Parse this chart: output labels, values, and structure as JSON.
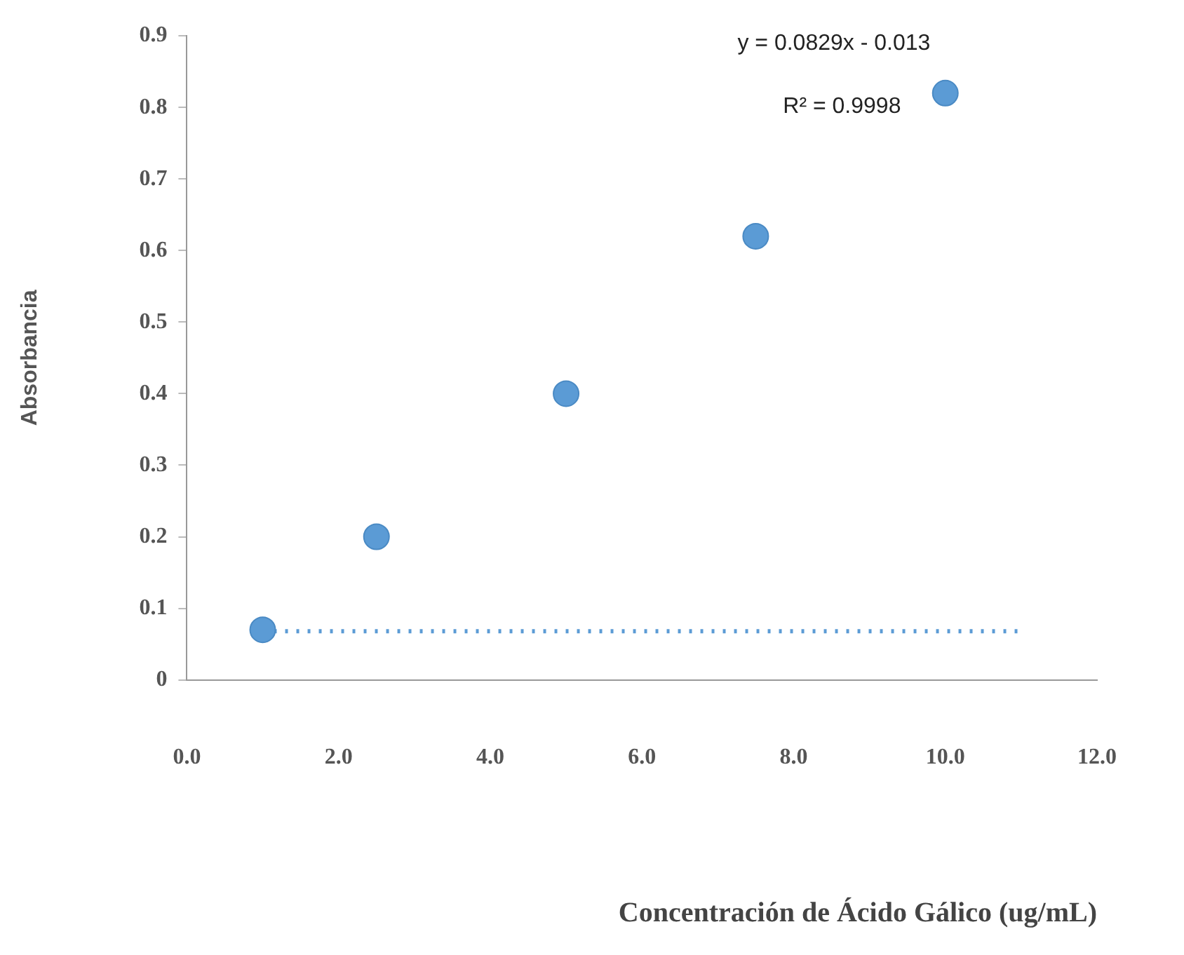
{
  "chart_data": {
    "type": "scatter",
    "xlabel": "Concentración de Ácido Gálico (ug/mL)",
    "ylabel": "Absorbancia",
    "x": [
      1,
      2.5,
      5,
      7.5,
      10
    ],
    "series": [
      {
        "type": "scatter",
        "color": "#5b9bd5",
        "values": [
          0.07,
          0.2,
          0.4,
          0.62,
          0.82
        ],
        "marker": "circle"
      },
      {
        "type": "line",
        "color": "#5b9bd5",
        "x": [
          1,
          11
        ],
        "values": [
          0.068,
          0.068
        ],
        "line_style": "dotted",
        "marker": "none"
      }
    ],
    "xlim": [
      0,
      12
    ],
    "xticks": [
      {
        "value": 0,
        "label": "0.0"
      },
      {
        "value": 2,
        "label": "2.0"
      },
      {
        "value": 4,
        "label": "4.0"
      },
      {
        "value": 6,
        "label": "6.0"
      },
      {
        "value": 8,
        "label": "8.0"
      },
      {
        "value": 10,
        "label": "10.0"
      },
      {
        "value": 12,
        "label": "12.0"
      }
    ],
    "ylim": [
      0,
      0.9
    ],
    "yticks": [
      0,
      0.1,
      0.2,
      0.3,
      0.4,
      0.5,
      0.6,
      0.7,
      0.8,
      0.9
    ],
    "grid": false,
    "legend": false,
    "annotations": [
      "y = 0.0829x - 0.013",
      "R² = 0.9998"
    ]
  }
}
